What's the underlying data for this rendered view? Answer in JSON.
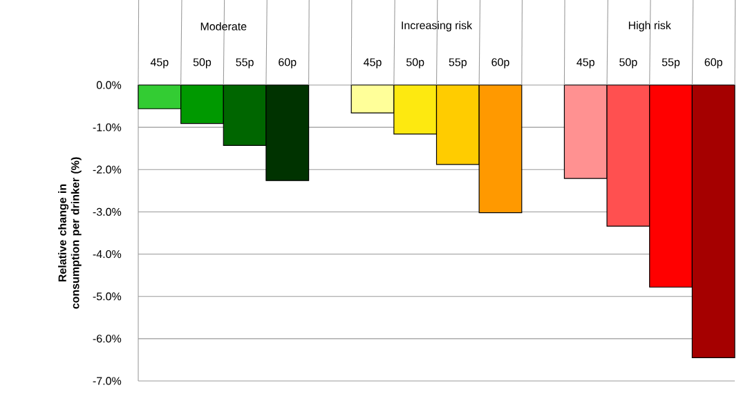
{
  "chart_data": {
    "type": "bar",
    "ylabel": "Relative change in consumption per drinker (%)",
    "categories": [
      "45p",
      "50p",
      "55p",
      "60p",
      null,
      "45p",
      "50p",
      "55p",
      "60p",
      null,
      "45p",
      "50p",
      "55p",
      "60p"
    ],
    "values": [
      -0.56,
      -0.91,
      -1.43,
      -2.26,
      null,
      -0.66,
      -1.16,
      -1.88,
      -3.02,
      null,
      -2.21,
      -3.34,
      -4.78,
      -6.45
    ],
    "colors": [
      "#33cc33",
      "#009900",
      "#006600",
      "#003300",
      null,
      "#ffff99",
      "#fde910",
      "#ffcc00",
      "#ff9900",
      null,
      "#ff9191",
      "#ff5050",
      "#ff0000",
      "#a50000"
    ],
    "annotations": [
      "Moderate",
      "Increasing risk",
      "High risk"
    ],
    "ylim": [
      -7,
      0
    ],
    "yticks": [
      {
        "value": 0,
        "label": "0.0%"
      },
      {
        "value": -1,
        "label": "-1.0%"
      },
      {
        "value": -2,
        "label": "-2.0%"
      },
      {
        "value": -3,
        "label": "-3.0%"
      },
      {
        "value": -4,
        "label": "-4.0%"
      },
      {
        "value": -5,
        "label": "-5.0%"
      },
      {
        "value": -6,
        "label": "-6.0%"
      },
      {
        "value": -7,
        "label": "-7.0%"
      }
    ],
    "grid": "y"
  }
}
